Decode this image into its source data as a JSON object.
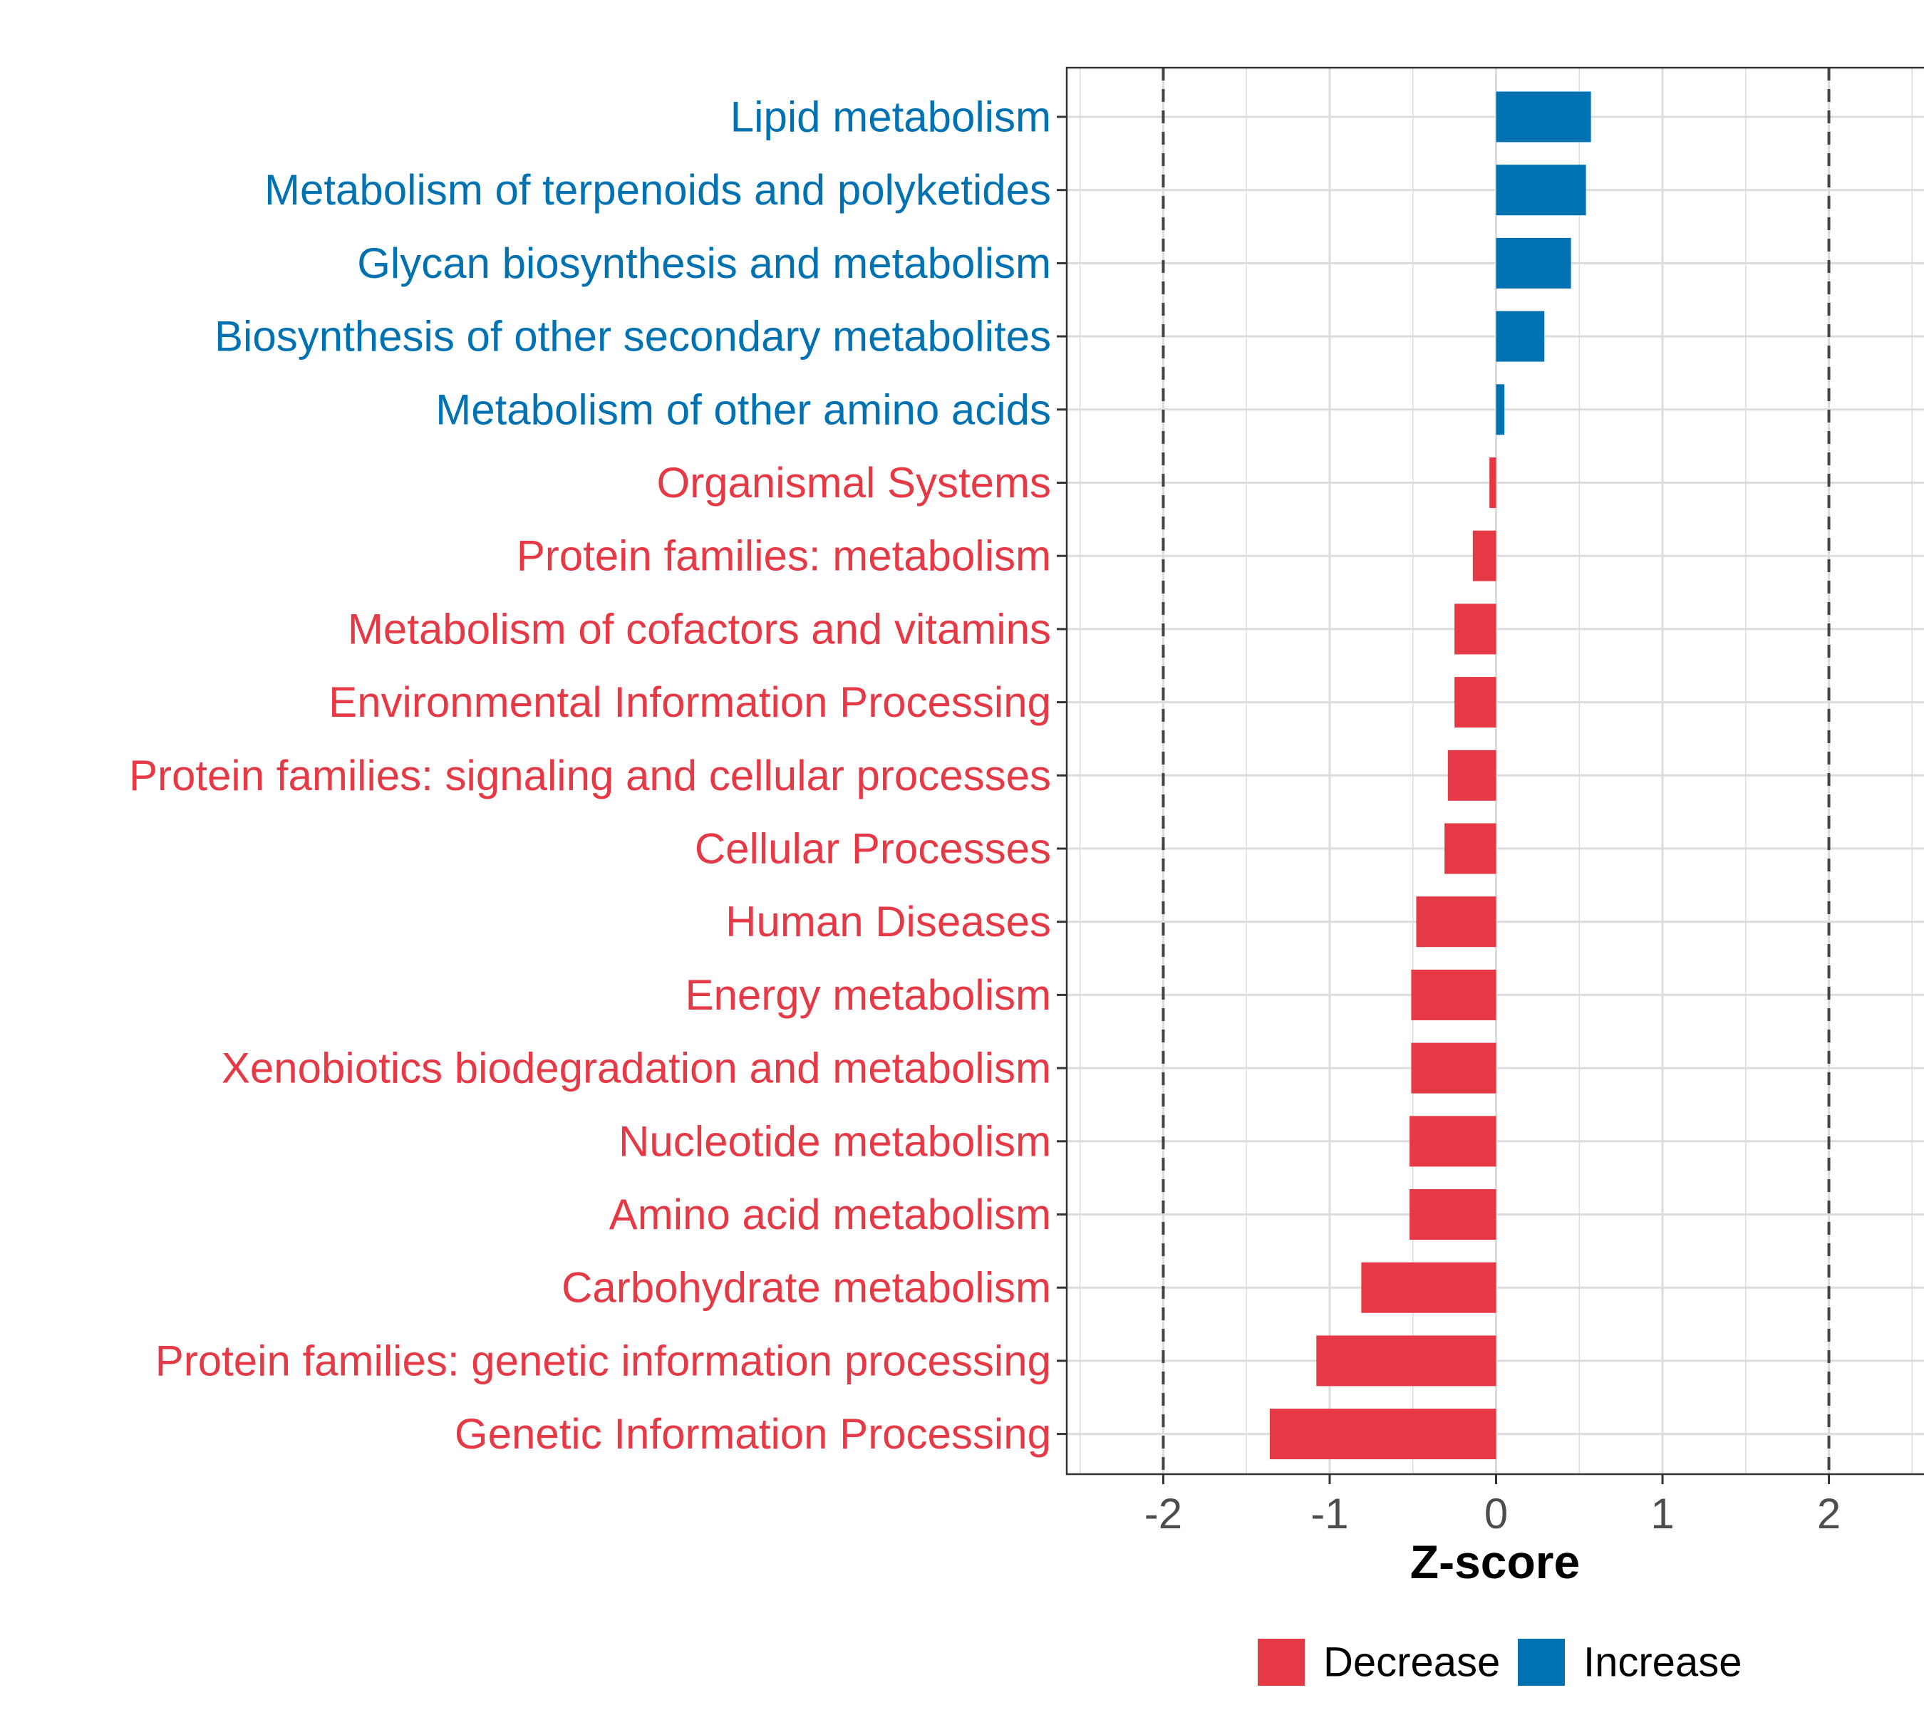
{
  "chart_data": {
    "type": "bar",
    "orientation": "horizontal",
    "categories": [
      "Lipid metabolism",
      "Metabolism of terpenoids and polyketides",
      "Glycan biosynthesis and metabolism",
      "Biosynthesis of other secondary metabolites",
      "Metabolism of other amino acids",
      "Organismal Systems",
      "Protein families: metabolism",
      "Metabolism of cofactors and vitamins",
      "Environmental Information Processing",
      "Protein families: signaling and cellular processes",
      "Cellular Processes",
      "Human Diseases",
      "Energy metabolism",
      "Xenobiotics biodegradation and metabolism",
      "Nucleotide metabolism",
      "Amino acid metabolism",
      "Carbohydrate metabolism",
      "Protein families: genetic information processing",
      "Genetic Information Processing"
    ],
    "values": [
      0.57,
      0.54,
      0.45,
      0.29,
      0.05,
      -0.04,
      -0.14,
      -0.25,
      -0.25,
      -0.29,
      -0.31,
      -0.48,
      -0.51,
      -0.51,
      -0.52,
      -0.52,
      -0.81,
      -1.08,
      -1.36
    ],
    "groups": [
      "Increase",
      "Increase",
      "Increase",
      "Increase",
      "Increase",
      "Decrease",
      "Decrease",
      "Decrease",
      "Decrease",
      "Decrease",
      "Decrease",
      "Decrease",
      "Decrease",
      "Decrease",
      "Decrease",
      "Decrease",
      "Decrease",
      "Decrease",
      "Decrease"
    ],
    "xlabel": "Z-score",
    "ylabel": "",
    "xlim": [
      -2.58,
      2.58
    ],
    "xticks": [
      -2,
      -1,
      0,
      1,
      2
    ],
    "xtick_labels": [
      "-2",
      "-1",
      "0",
      "1",
      "2"
    ],
    "reference_lines": [
      -2,
      2
    ],
    "grid": true,
    "legend": {
      "position": "bottom",
      "entries": [
        {
          "label": "Decrease",
          "color": "#E63946"
        },
        {
          "label": "Increase",
          "color": "#0072B2"
        }
      ]
    },
    "colors": {
      "Decrease": "#E63946",
      "Increase": "#0072B2"
    }
  }
}
